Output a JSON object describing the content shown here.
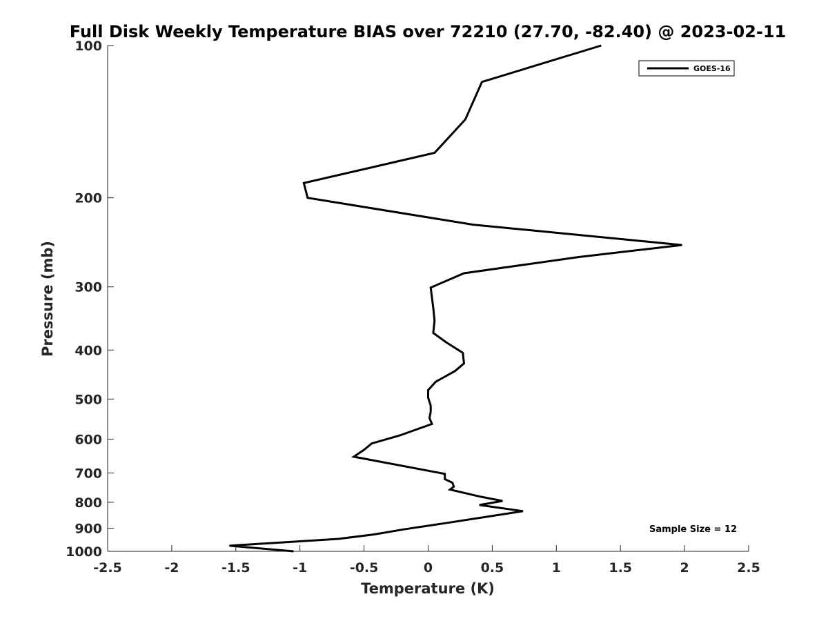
{
  "chart_data": {
    "type": "line",
    "title": "Full Disk Weekly Temperature BIAS over 72210 (27.70, -82.40) @ 2023-02-11",
    "xlabel": "Temperature (K)",
    "ylabel": "Pressure (mb)",
    "xlim": [
      -2.5,
      2.5
    ],
    "ylim": [
      100,
      1000
    ],
    "y_scale": "log",
    "y_reversed": true,
    "x_ticks": [
      "-2.5",
      "-2",
      "-1.5",
      "-1",
      "-0.5",
      "0",
      "0.5",
      "1",
      "1.5",
      "2",
      "2.5"
    ],
    "x_tick_values": [
      -2.5,
      -2,
      -1.5,
      -1,
      -0.5,
      0,
      0.5,
      1,
      1.5,
      2,
      2.5
    ],
    "y_ticks": [
      "100",
      "200",
      "300",
      "400",
      "500",
      "600",
      "700",
      "800",
      "900",
      "1000"
    ],
    "y_tick_values": [
      100,
      200,
      300,
      400,
      500,
      600,
      700,
      800,
      900,
      1000
    ],
    "grid": false,
    "legend_position": "top-right",
    "annotation": "Sample Size = 12",
    "series": [
      {
        "name": "GOES-16",
        "color": "#000000",
        "x": [
          1.35,
          0.42,
          0.29,
          0.05,
          -0.97,
          -0.94,
          0.35,
          1.98,
          1.17,
          0.28,
          0.02,
          0.04,
          0.05,
          0.04,
          0.14,
          0.27,
          0.28,
          0.21,
          0.06,
          0.0,
          0.0,
          0.02,
          0.02,
          0.01,
          0.03,
          -0.22,
          -0.44,
          -0.5,
          -0.58,
          0.13,
          0.13,
          0.19,
          0.2,
          0.17,
          0.41,
          0.58,
          0.4,
          0.74,
          0.49,
          0.13,
          -0.19,
          -0.42,
          -0.7,
          -1.55,
          -1.05
        ],
        "y": [
          100,
          118,
          140,
          163,
          187,
          200,
          226,
          248,
          262,
          282,
          301,
          330,
          350,
          370,
          386,
          405,
          425,
          440,
          462,
          480,
          497,
          515,
          530,
          545,
          560,
          590,
          612,
          630,
          650,
          703,
          720,
          732,
          745,
          755,
          780,
          795,
          810,
          833,
          852,
          880,
          905,
          926,
          945,
          975,
          1000
        ]
      }
    ]
  }
}
